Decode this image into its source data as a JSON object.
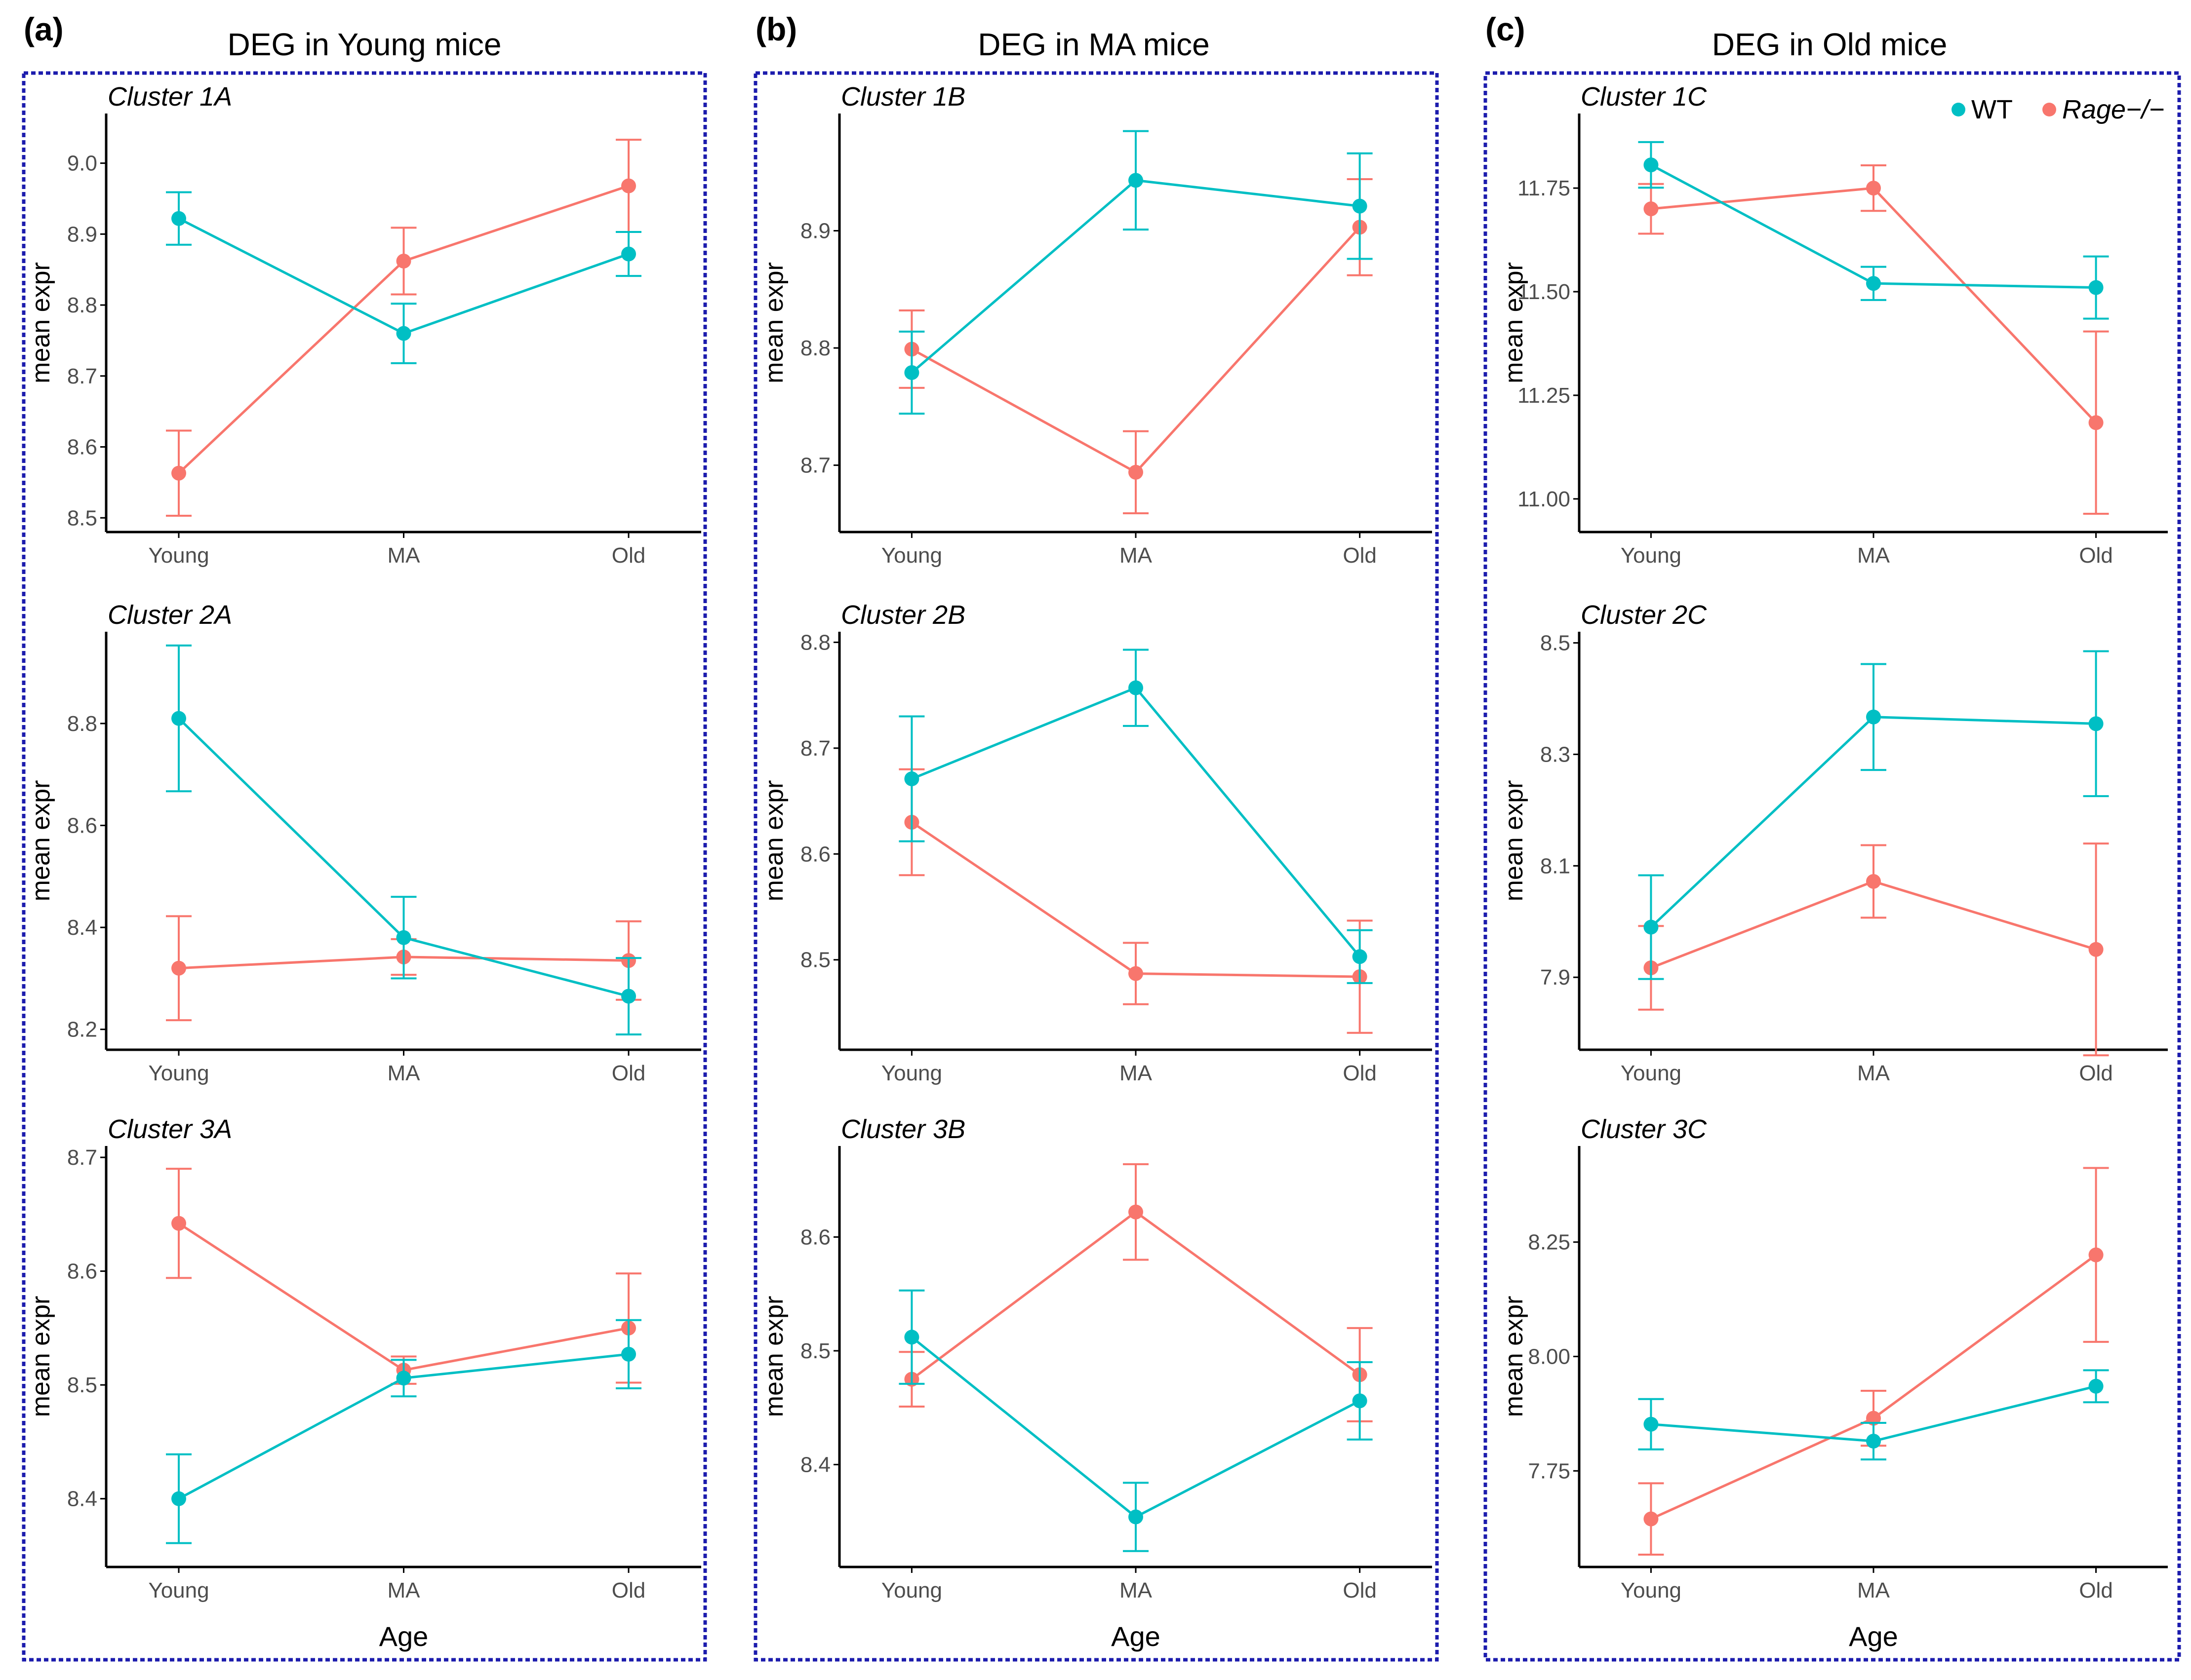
{
  "colors": {
    "wt": "#00bfc4",
    "rage": "#f8766d",
    "frame": "#1c1cad"
  },
  "legend": {
    "wt_label": "WT",
    "rage_label": "Rage−/−"
  },
  "common": {
    "ylabel": "mean expr",
    "xlabel": "Age"
  },
  "panels": [
    {
      "letter": "(a)",
      "title": "DEG in Young mice"
    },
    {
      "letter": "(b)",
      "title": "DEG in MA mice"
    },
    {
      "letter": "(c)",
      "title": "DEG in Old mice"
    }
  ],
  "chart_data": [
    {
      "type": "line",
      "title": "Cluster 1A",
      "xlabel": "",
      "ylabel": "mean expr",
      "categories": [
        "Young",
        "MA",
        "Old"
      ],
      "ylim": [
        8.48,
        9.07
      ],
      "yticks": [
        8.5,
        8.6,
        8.7,
        8.8,
        8.9,
        9.0
      ],
      "yfmt": 1,
      "series": [
        {
          "name": "WT",
          "values": [
            8.922,
            8.76,
            8.872
          ],
          "err": [
            0.037,
            0.042,
            0.031
          ]
        },
        {
          "name": "Rage−/−",
          "values": [
            8.563,
            8.862,
            8.968
          ],
          "err": [
            0.06,
            0.047,
            0.065
          ]
        }
      ]
    },
    {
      "type": "line",
      "title": "Cluster 2A",
      "xlabel": "",
      "ylabel": "mean expr",
      "categories": [
        "Young",
        "MA",
        "Old"
      ],
      "ylim": [
        8.16,
        8.98
      ],
      "yticks": [
        8.2,
        8.4,
        8.6,
        8.8
      ],
      "yfmt": 1,
      "series": [
        {
          "name": "WT",
          "values": [
            8.81,
            8.38,
            8.265
          ],
          "err": [
            0.143,
            0.08,
            0.075
          ]
        },
        {
          "name": "Rage−/−",
          "values": [
            8.32,
            8.342,
            8.335
          ],
          "err": [
            0.102,
            0.035,
            0.077
          ]
        }
      ]
    },
    {
      "type": "line",
      "title": "Cluster 3A",
      "xlabel": "Age",
      "ylabel": "mean expr",
      "categories": [
        "Young",
        "MA",
        "Old"
      ],
      "ylim": [
        8.34,
        8.71
      ],
      "yticks": [
        8.4,
        8.5,
        8.6,
        8.7
      ],
      "yfmt": 1,
      "series": [
        {
          "name": "WT",
          "values": [
            8.4,
            8.506,
            8.527
          ],
          "err": [
            0.039,
            0.016,
            0.03
          ]
        },
        {
          "name": "Rage−/−",
          "values": [
            8.642,
            8.513,
            8.55
          ],
          "err": [
            0.048,
            0.012,
            0.048
          ]
        }
      ]
    },
    {
      "type": "line",
      "title": "Cluster 1B",
      "xlabel": "",
      "ylabel": "mean expr",
      "categories": [
        "Young",
        "MA",
        "Old"
      ],
      "ylim": [
        8.643,
        9.0
      ],
      "yticks": [
        8.7,
        8.8,
        8.9
      ],
      "yfmt": 1,
      "series": [
        {
          "name": "WT",
          "values": [
            8.779,
            8.943,
            8.921
          ],
          "err": [
            0.035,
            0.042,
            0.045
          ]
        },
        {
          "name": "Rage−/−",
          "values": [
            8.799,
            8.694,
            8.903
          ],
          "err": [
            0.033,
            0.035,
            0.041
          ]
        }
      ]
    },
    {
      "type": "line",
      "title": "Cluster 2B",
      "xlabel": "",
      "ylabel": "mean expr",
      "categories": [
        "Young",
        "MA",
        "Old"
      ],
      "ylim": [
        8.415,
        8.81
      ],
      "yticks": [
        8.5,
        8.6,
        8.7,
        8.8
      ],
      "yfmt": 1,
      "series": [
        {
          "name": "WT",
          "values": [
            8.671,
            8.757,
            8.503
          ],
          "err": [
            0.059,
            0.036,
            0.025
          ]
        },
        {
          "name": "Rage−/−",
          "values": [
            8.63,
            8.487,
            8.484
          ],
          "err": [
            0.05,
            0.029,
            0.053
          ]
        }
      ]
    },
    {
      "type": "line",
      "title": "Cluster 3B",
      "xlabel": "Age",
      "ylabel": "mean expr",
      "categories": [
        "Young",
        "MA",
        "Old"
      ],
      "ylim": [
        8.31,
        8.68
      ],
      "yticks": [
        8.4,
        8.5,
        8.6
      ],
      "yfmt": 1,
      "series": [
        {
          "name": "WT",
          "values": [
            8.512,
            8.354,
            8.456
          ],
          "err": [
            0.041,
            0.03,
            0.034
          ]
        },
        {
          "name": "Rage−/−",
          "values": [
            8.475,
            8.622,
            8.479
          ],
          "err": [
            0.024,
            0.042,
            0.041
          ]
        }
      ]
    },
    {
      "type": "line",
      "title": "Cluster 1C",
      "xlabel": "",
      "ylabel": "mean expr",
      "categories": [
        "Young",
        "MA",
        "Old"
      ],
      "ylim": [
        10.92,
        11.93
      ],
      "yticks": [
        11.0,
        11.25,
        11.5,
        11.75
      ],
      "yfmt": 2,
      "series": [
        {
          "name": "WT",
          "values": [
            11.806,
            11.52,
            11.51
          ],
          "err": [
            0.055,
            0.04,
            0.075
          ]
        },
        {
          "name": "Rage−/−",
          "values": [
            11.7,
            11.75,
            11.184
          ],
          "err": [
            0.06,
            0.055,
            0.22
          ]
        }
      ]
    },
    {
      "type": "line",
      "title": "Cluster 2C",
      "xlabel": "",
      "ylabel": "mean expr",
      "categories": [
        "Young",
        "MA",
        "Old"
      ],
      "ylim": [
        7.77,
        8.52
      ],
      "yticks": [
        7.9,
        8.1,
        8.3,
        8.5
      ],
      "yfmt": 1,
      "series": [
        {
          "name": "WT",
          "values": [
            7.99,
            8.367,
            8.355
          ],
          "err": [
            0.093,
            0.095,
            0.13
          ]
        },
        {
          "name": "Rage−/−",
          "values": [
            7.917,
            8.072,
            7.95
          ],
          "err": [
            0.075,
            0.065,
            0.19
          ]
        }
      ]
    },
    {
      "type": "line",
      "title": "Cluster 3C",
      "xlabel": "Age",
      "ylabel": "mean expr",
      "categories": [
        "Young",
        "MA",
        "Old"
      ],
      "ylim": [
        7.54,
        8.46
      ],
      "yticks": [
        7.75,
        8.0,
        8.25
      ],
      "yfmt": 2,
      "series": [
        {
          "name": "WT",
          "values": [
            7.852,
            7.815,
            7.935
          ],
          "err": [
            0.055,
            0.04,
            0.035
          ]
        },
        {
          "name": "Rage−/−",
          "values": [
            7.645,
            7.865,
            8.222
          ],
          "err": [
            0.078,
            0.06,
            0.19
          ]
        }
      ]
    }
  ]
}
